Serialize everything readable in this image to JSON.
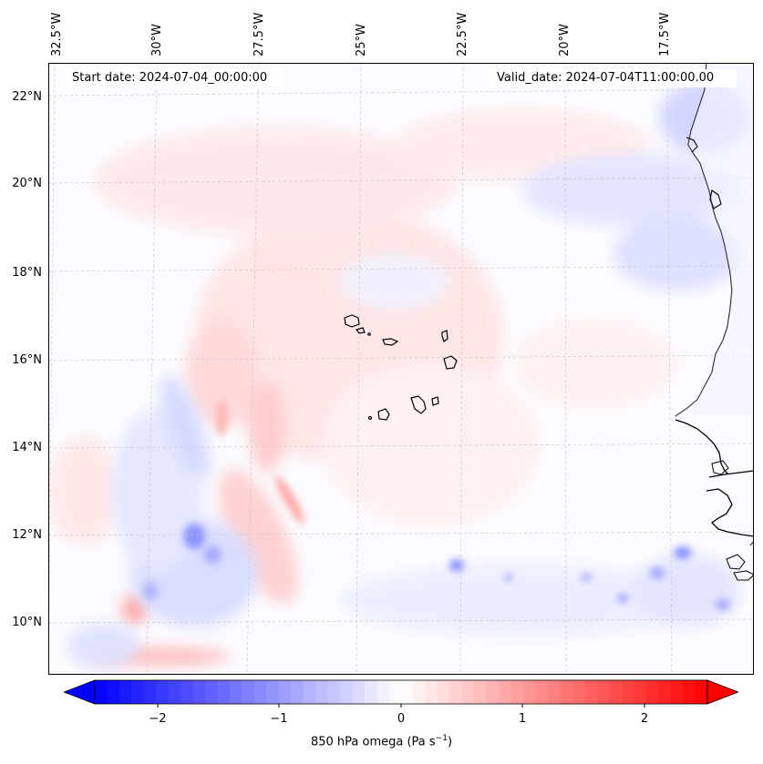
{
  "map": {
    "start_date": "Start date: 2024-07-04_00:00:00",
    "valid_date": "Valid_date: 2024-07-04T11:00:00.00",
    "lon_labels": [
      "32.5°W",
      "30°W",
      "27.5°W",
      "25°W",
      "22.5°W",
      "20°W",
      "17.5°W"
    ],
    "lat_labels": [
      "22°N",
      "20°N",
      "18°N",
      "16°N",
      "14°N",
      "12°N",
      "10°N"
    ],
    "region": "Cape Verde / West African coast",
    "field": "850 hPa omega"
  },
  "colorbar": {
    "ticks": [
      "−2",
      "−1",
      "0",
      "1",
      "2"
    ],
    "label_main": "850 hPa omega (Pa s",
    "label_sup": "−1",
    "label_end": ")",
    "min_color": "#0000ff",
    "mid_color": "#ffffff",
    "max_color": "#ff0000"
  }
}
